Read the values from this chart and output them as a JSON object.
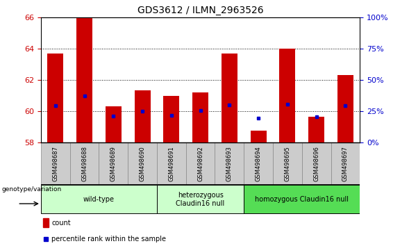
{
  "title": "GDS3612 / ILMN_2963526",
  "samples": [
    "GSM498687",
    "GSM498688",
    "GSM498689",
    "GSM498690",
    "GSM498691",
    "GSM498692",
    "GSM498693",
    "GSM498694",
    "GSM498695",
    "GSM498696",
    "GSM498697"
  ],
  "bar_tops": [
    63.7,
    66.0,
    60.3,
    61.35,
    61.0,
    61.2,
    63.7,
    58.75,
    64.0,
    59.65,
    62.3
  ],
  "blue_dot_y": [
    60.35,
    61.0,
    59.7,
    60.0,
    59.75,
    60.05,
    60.4,
    59.55,
    60.45,
    59.65,
    60.35
  ],
  "bar_base": 58.0,
  "ylim_left": [
    58,
    66
  ],
  "ylim_right": [
    0,
    100
  ],
  "yticks_left": [
    58,
    60,
    62,
    64,
    66
  ],
  "yticks_right": [
    0,
    25,
    50,
    75,
    100
  ],
  "bar_color": "#cc0000",
  "dot_color": "#0000cc",
  "bar_width": 0.55,
  "group_configs": [
    {
      "samples": [
        0,
        1,
        2,
        3
      ],
      "label": "wild-type",
      "color": "#ccffcc"
    },
    {
      "samples": [
        4,
        5,
        6
      ],
      "label": "heterozygous\nClaudin16 null",
      "color": "#ccffcc"
    },
    {
      "samples": [
        7,
        8,
        9,
        10
      ],
      "label": "homozygous Claudin16 null",
      "color": "#55dd55"
    }
  ],
  "legend_count_color": "#cc0000",
  "legend_dot_color": "#0000cc",
  "tick_label_color_left": "#cc0000",
  "tick_label_color_right": "#0000cc",
  "sample_box_color": "#cccccc",
  "grid_dotted_at": [
    60,
    62,
    64
  ]
}
